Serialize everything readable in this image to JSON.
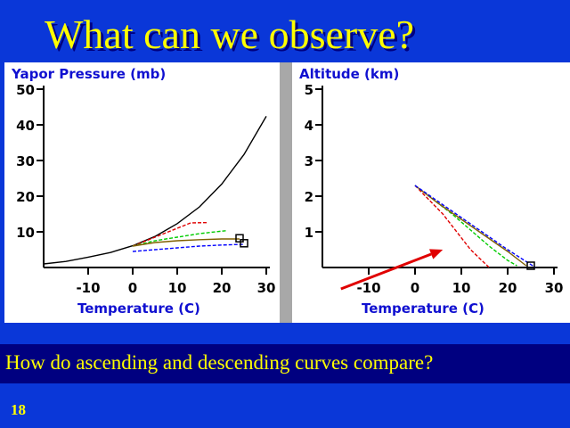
{
  "slide": {
    "title": "What can we observe?",
    "question": "How do ascending and  descending curves compare?",
    "number": "18"
  },
  "colors": {
    "background": "#0a37d8",
    "title": "#ffff00",
    "axis_label": "#1010d0",
    "question_bar": "#000080",
    "arrow": "#e00000"
  },
  "chart_data": [
    {
      "type": "line",
      "ylabel": "Yapor Pressure (mb)",
      "xlabel": "Temperature (C)",
      "xlim": [
        -20,
        30
      ],
      "ylim": [
        0,
        50
      ],
      "xticks": [
        -10,
        0,
        10,
        20,
        30
      ],
      "yticks": [
        10,
        20,
        30,
        40,
        50
      ],
      "series": [
        {
          "style": "solid",
          "color": "#000000",
          "x": [
            -20,
            -15,
            -10,
            -5,
            0,
            5,
            10,
            15,
            20,
            25,
            30
          ],
          "y": [
            1.0,
            1.7,
            2.9,
            4.2,
            6.1,
            8.7,
            12.3,
            17.0,
            23.4,
            31.7,
            42.4
          ]
        },
        {
          "style": "dashed",
          "color": "#e00000",
          "x": [
            0,
            5,
            10,
            13,
            17
          ],
          "y": [
            6.0,
            8.5,
            11.0,
            12.5,
            12.6
          ]
        },
        {
          "style": "dashed",
          "color": "#00cc00",
          "x": [
            0,
            5,
            10,
            15,
            20,
            21
          ],
          "y": [
            6.0,
            7.5,
            8.5,
            9.5,
            10.2,
            10.3
          ]
        },
        {
          "style": "solid",
          "color": "#806000",
          "x": [
            0,
            5,
            10,
            15,
            20,
            24
          ],
          "y": [
            6.0,
            7.0,
            7.5,
            7.8,
            8.0,
            8.0
          ]
        },
        {
          "style": "dashed",
          "color": "#0000ff",
          "x": [
            0,
            5,
            10,
            15,
            20,
            25
          ],
          "y": [
            4.5,
            5.0,
            5.5,
            6.0,
            6.3,
            6.5
          ]
        }
      ],
      "markers": [
        {
          "x": 24,
          "y": 8.2
        },
        {
          "x": 25,
          "y": 6.8
        }
      ]
    },
    {
      "type": "line",
      "ylabel": "Altitude (km)",
      "xlabel": "Temperature (C)",
      "xlim": [
        -20,
        30
      ],
      "ylim": [
        0,
        5
      ],
      "xticks": [
        -10,
        0,
        10,
        20,
        30
      ],
      "yticks": [
        1,
        2,
        3,
        4,
        5
      ],
      "series": [
        {
          "style": "dashed",
          "color": "#e00000",
          "x": [
            0,
            3,
            6,
            9,
            12,
            16
          ],
          "y": [
            2.3,
            1.9,
            1.5,
            1.0,
            0.5,
            0.0
          ]
        },
        {
          "style": "dashed",
          "color": "#00cc00",
          "x": [
            0,
            4,
            8,
            12,
            16,
            20,
            22
          ],
          "y": [
            2.3,
            1.9,
            1.5,
            1.05,
            0.6,
            0.2,
            0.05
          ]
        },
        {
          "style": "solid",
          "color": "#806000",
          "x": [
            0,
            5,
            10,
            15,
            20,
            24
          ],
          "y": [
            2.3,
            1.8,
            1.35,
            0.9,
            0.45,
            0.05
          ]
        },
        {
          "style": "dashed",
          "color": "#0000ff",
          "x": [
            0,
            5,
            10,
            15,
            20,
            26
          ],
          "y": [
            2.3,
            1.85,
            1.4,
            0.95,
            0.5,
            0.0
          ]
        }
      ],
      "markers": [
        {
          "x": 25,
          "y": 0.05
        }
      ],
      "arrow": {
        "from": {
          "x": -16,
          "y": -0.6
        },
        "to": {
          "x": 6,
          "y": 0.5
        }
      }
    }
  ]
}
